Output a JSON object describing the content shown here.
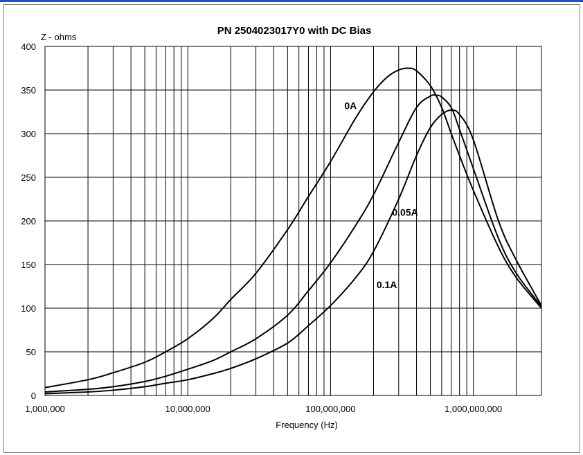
{
  "chart_data": {
    "type": "line",
    "title": "PN 2504023017Y0 with DC Bias",
    "xlabel": "Frequency (Hz)",
    "ylabel": "Z - ohms",
    "x_scale": "log",
    "xlim": [
      1000000,
      3000000000
    ],
    "ylim": [
      0,
      400
    ],
    "yticks": [
      0,
      50,
      100,
      150,
      200,
      250,
      300,
      350,
      400
    ],
    "xticks": [
      1000000,
      10000000,
      100000000,
      1000000000
    ],
    "xtick_labels": [
      "1,000,000",
      "10,000,000",
      "100,000,000",
      "1,000,000,000"
    ],
    "grid": true,
    "legend": "inline labels",
    "line_color": "#000000",
    "series": [
      {
        "name": "0A",
        "x": [
          1000000,
          2000000,
          3000000,
          5000000,
          7000000,
          10000000,
          15000000,
          20000000,
          30000000,
          50000000,
          70000000,
          100000000,
          150000000,
          200000000,
          250000000,
          300000000,
          350000000,
          400000000,
          500000000,
          600000000,
          700000000,
          800000000,
          1000000000,
          1500000000,
          2000000000,
          3000000000
        ],
        "y": [
          9,
          18,
          26,
          38,
          50,
          65,
          88,
          110,
          140,
          190,
          228,
          268,
          318,
          348,
          365,
          373,
          375,
          372,
          355,
          330,
          300,
          275,
          235,
          170,
          135,
          100
        ]
      },
      {
        "name": "0.05A",
        "x": [
          1000000,
          2000000,
          3000000,
          5000000,
          7000000,
          10000000,
          15000000,
          20000000,
          30000000,
          50000000,
          70000000,
          100000000,
          150000000,
          200000000,
          300000000,
          400000000,
          500000000,
          550000000,
          600000000,
          700000000,
          800000000,
          1000000000,
          1500000000,
          2000000000,
          3000000000
        ],
        "y": [
          4,
          7,
          10,
          16,
          22,
          30,
          40,
          50,
          65,
          92,
          120,
          152,
          195,
          230,
          290,
          330,
          343,
          344,
          342,
          330,
          305,
          260,
          180,
          140,
          102
        ]
      },
      {
        "name": "0.1A",
        "x": [
          1000000,
          2000000,
          3000000,
          5000000,
          7000000,
          10000000,
          15000000,
          20000000,
          30000000,
          50000000,
          70000000,
          100000000,
          150000000,
          200000000,
          300000000,
          400000000,
          500000000,
          600000000,
          700000000,
          800000000,
          1000000000,
          1500000000,
          2000000000,
          3000000000
        ],
        "y": [
          2,
          4,
          6,
          10,
          14,
          18,
          25,
          31,
          42,
          60,
          80,
          103,
          135,
          165,
          225,
          275,
          307,
          322,
          327,
          322,
          293,
          200,
          155,
          103
        ]
      }
    ],
    "annotations": [
      {
        "text": "0A",
        "x": 125000000,
        "y": 328
      },
      {
        "text": "0.05A",
        "x": 270000000,
        "y": 206
      },
      {
        "text": "0.1A",
        "x": 210000000,
        "y": 123
      }
    ]
  }
}
